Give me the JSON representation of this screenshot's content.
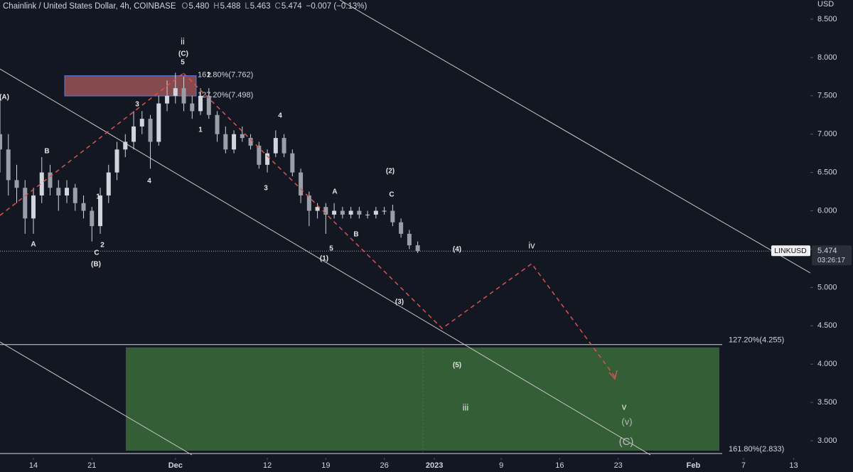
{
  "header": {
    "title": "Chainlink / United States Dollar, 4h, COINBASE",
    "ohlc": [
      {
        "label": "O",
        "value": "5.480"
      },
      {
        "label": "H",
        "value": "5.488"
      },
      {
        "label": "L",
        "value": "5.463"
      },
      {
        "label": "C",
        "value": "5.474"
      }
    ],
    "change": "−0.007 (−0.13%)"
  },
  "chart_data": {
    "type": "candlestick",
    "y_unit": "USD",
    "color": "#d1d4dc",
    "x": [
      "2022-11-10",
      "2022-11-11",
      "2022-11-12",
      "2022-11-13",
      "2022-11-14",
      "2022-11-15",
      "2022-11-16",
      "2022-11-17",
      "2022-11-18",
      "2022-11-19",
      "2022-11-20",
      "2022-11-21",
      "2022-11-22",
      "2022-11-23",
      "2022-11-24",
      "2022-11-25",
      "2022-11-26",
      "2022-11-27",
      "2022-11-28",
      "2022-11-29",
      "2022-11-30",
      "2022-12-01",
      "2022-12-02",
      "2022-12-03",
      "2022-12-04",
      "2022-12-05",
      "2022-12-06",
      "2022-12-07",
      "2022-12-08",
      "2022-12-09",
      "2022-12-10",
      "2022-12-11",
      "2022-12-12",
      "2022-12-13",
      "2022-12-14",
      "2022-12-15",
      "2022-12-16",
      "2022-12-17",
      "2022-12-18",
      "2022-12-19",
      "2022-12-20",
      "2022-12-21",
      "2022-12-22",
      "2022-12-23",
      "2022-12-24",
      "2022-12-25",
      "2022-12-26",
      "2022-12-27",
      "2022-12-28",
      "2022-12-29",
      "2022-12-30"
    ],
    "open": [
      7.0,
      6.8,
      6.4,
      6.3,
      5.9,
      6.2,
      6.5,
      6.3,
      6.2,
      6.3,
      6.1,
      6.0,
      5.8,
      6.2,
      6.5,
      6.8,
      6.9,
      7.1,
      7.2,
      6.9,
      7.4,
      7.5,
      7.6,
      7.4,
      7.3,
      7.5,
      7.25,
      7.0,
      6.8,
      7.0,
      6.95,
      6.85,
      6.6,
      6.75,
      6.95,
      6.75,
      6.5,
      6.2,
      6.0,
      6.05,
      5.95,
      6.0,
      5.95,
      6.0,
      5.95,
      5.95,
      6.0,
      6.0,
      5.85,
      5.7,
      5.55
    ],
    "high": [
      7.5,
      7.0,
      6.6,
      6.4,
      6.3,
      6.7,
      6.6,
      6.4,
      6.4,
      6.35,
      6.2,
      6.05,
      6.3,
      6.6,
      6.9,
      7.0,
      7.3,
      7.3,
      7.25,
      7.5,
      7.7,
      7.8,
      7.75,
      7.5,
      7.6,
      7.6,
      7.3,
      7.1,
      7.05,
      7.1,
      7.0,
      6.9,
      6.8,
      7.05,
      7.0,
      6.8,
      6.55,
      6.25,
      6.1,
      6.1,
      6.1,
      6.05,
      6.05,
      6.05,
      6.0,
      6.05,
      6.05,
      6.08,
      5.9,
      5.75,
      5.6
    ],
    "low": [
      6.5,
      6.2,
      6.1,
      5.7,
      5.7,
      6.1,
      6.2,
      6.0,
      6.1,
      6.0,
      5.9,
      5.6,
      5.7,
      6.1,
      6.4,
      6.7,
      6.8,
      7.0,
      6.55,
      6.85,
      7.3,
      7.4,
      7.3,
      7.2,
      7.25,
      7.2,
      6.9,
      6.75,
      6.75,
      6.9,
      6.8,
      6.55,
      6.5,
      6.7,
      6.7,
      6.45,
      6.1,
      5.8,
      5.9,
      5.7,
      5.9,
      5.9,
      5.9,
      5.9,
      5.9,
      5.9,
      5.95,
      5.8,
      5.65,
      5.5,
      5.45
    ],
    "close": [
      6.8,
      6.4,
      6.3,
      5.9,
      6.2,
      6.5,
      6.3,
      6.2,
      6.3,
      6.1,
      6.0,
      5.8,
      6.2,
      6.5,
      6.8,
      6.9,
      7.1,
      7.2,
      6.9,
      7.4,
      7.5,
      7.6,
      7.4,
      7.3,
      7.5,
      7.25,
      7.0,
      6.8,
      7.0,
      6.95,
      6.85,
      6.6,
      6.75,
      6.95,
      6.75,
      6.5,
      6.2,
      6.0,
      6.05,
      5.95,
      6.0,
      5.95,
      6.0,
      5.95,
      5.95,
      6.0,
      6.0,
      5.85,
      5.7,
      5.55,
      5.474
    ],
    "xlim": [
      "2022-11-10",
      "2023-02-15"
    ],
    "xticks": [
      {
        "value": "2022-11-14",
        "label": "14"
      },
      {
        "value": "2022-11-21",
        "label": "21"
      },
      {
        "value": "2022-12-01",
        "label": "Dec"
      },
      {
        "value": "2022-12-12",
        "label": "12"
      },
      {
        "value": "2022-12-19",
        "label": "19"
      },
      {
        "value": "2022-12-26",
        "label": "26"
      },
      {
        "value": "2023-01-01",
        "label": "2023"
      },
      {
        "value": "2023-01-09",
        "label": "9"
      },
      {
        "value": "2023-01-16",
        "label": "16"
      },
      {
        "value": "2023-01-23",
        "label": "23"
      },
      {
        "value": "2023-02-01",
        "label": "Feb"
      },
      {
        "value": "2023-02-07",
        "label": "7"
      },
      {
        "value": "2023-02-13",
        "label": "13"
      }
    ],
    "ylim": [
      2.75,
      8.75
    ],
    "yticks": [
      {
        "value": 8.5,
        "label": "8.500"
      },
      {
        "value": 8,
        "label": "8.000"
      },
      {
        "value": 7.5,
        "label": "7.500"
      },
      {
        "value": 7,
        "label": "7.000"
      },
      {
        "value": 6.5,
        "label": "6.500"
      },
      {
        "value": 6,
        "label": "6.000"
      },
      {
        "value": 5.5,
        "label": "5.500"
      },
      {
        "value": 5,
        "label": "5.000"
      },
      {
        "value": 4.5,
        "label": "4.500"
      },
      {
        "value": 4,
        "label": "4.000"
      },
      {
        "value": 3.5,
        "label": "3.500"
      },
      {
        "value": 3,
        "label": "3.000"
      }
    ],
    "price_label": {
      "symbol": "LINKUSD",
      "value": 5.474,
      "label": "5.474",
      "countdown": "03:26:17"
    },
    "resistance_zone": {
      "top": {
        "value": 7.762,
        "label": "161.80%(7.762)"
      },
      "bottom": {
        "value": 7.498,
        "label": "127.20%(7.498)"
      },
      "color": "#e57373"
    },
    "target_zone": {
      "top": {
        "value": 4.255,
        "label": "127.20%(4.255)"
      },
      "bottom": {
        "value": 2.833,
        "label": "161.80%(2.833)"
      },
      "color": "#3a6b3a"
    },
    "annotations": [
      "(A)",
      "B",
      "A",
      "C",
      "2",
      "(B)",
      "1",
      "3",
      "4",
      "ii",
      "(C)",
      "5",
      "2",
      "1",
      "4",
      "3",
      "(2)",
      "A",
      "C",
      "B",
      "5",
      "(1)",
      "(4)",
      "iv",
      "(3)",
      "(5)",
      "iii",
      "v",
      "(v)",
      "(C)"
    ]
  }
}
